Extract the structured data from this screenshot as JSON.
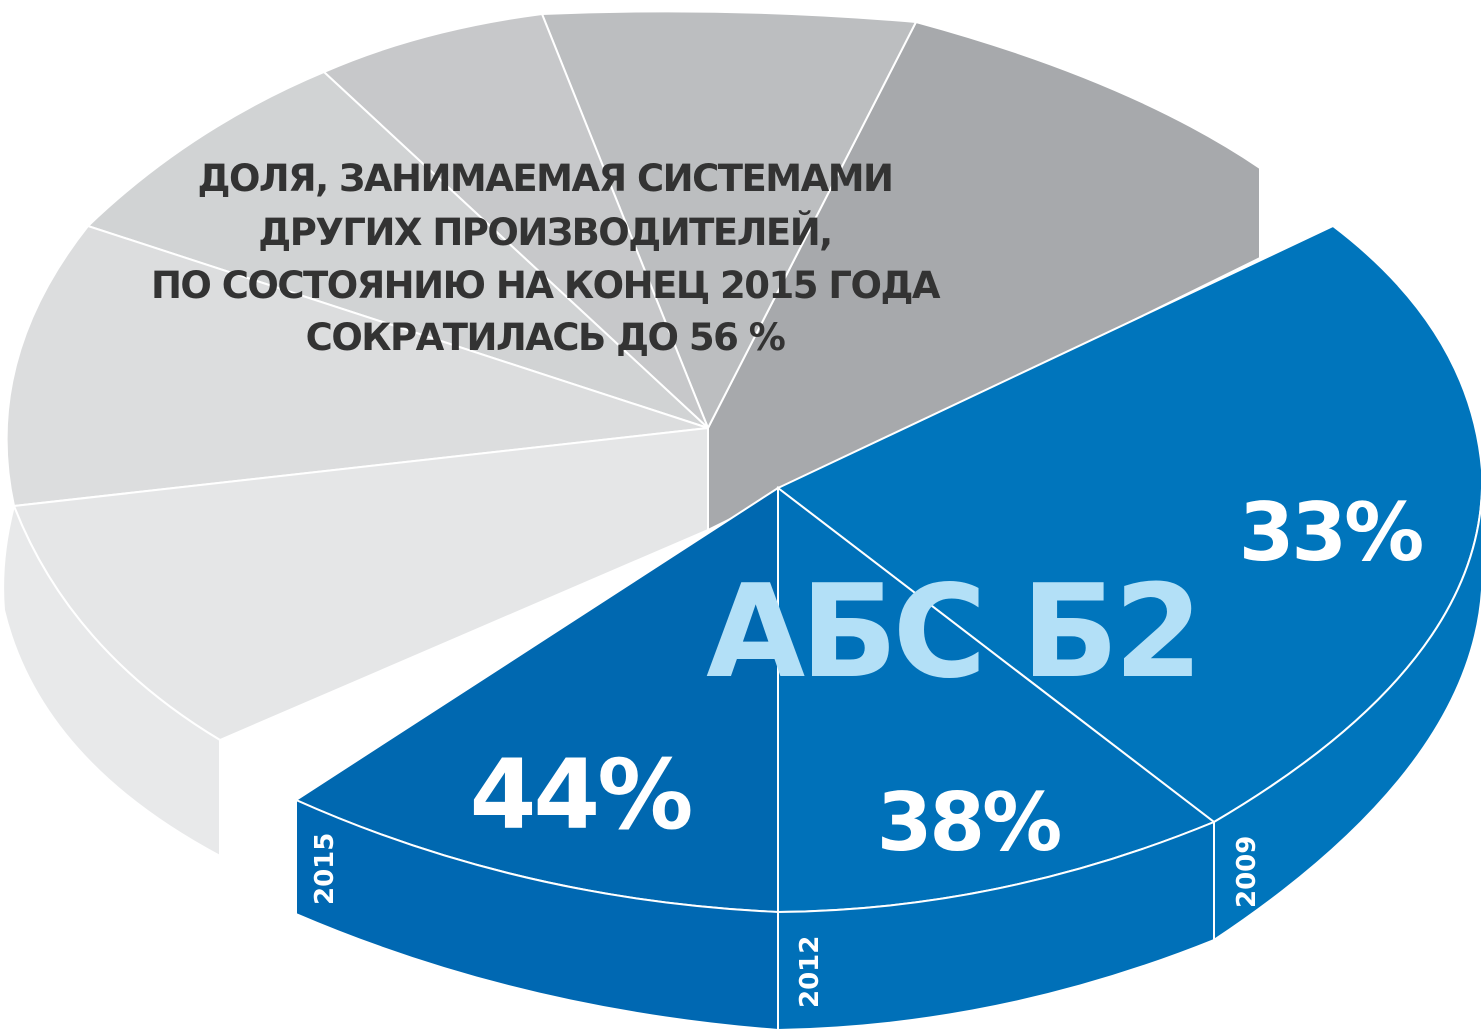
{
  "caption": {
    "line1": "ДОЛЯ, ЗАНИМАЕМАЯ СИСТЕМАМИ",
    "line2": "ДРУГИХ ПРОИЗВОДИТЕЛЕЙ,",
    "line3": "ПО СОСТОЯНИЮ НА КОНЕЦ 2015 ГОДА",
    "line4": "СОКРАТИЛАСЬ ДО 56 %"
  },
  "brand_label": "АБС Б2",
  "chart_data": {
    "type": "pie",
    "title": "",
    "series": [
      {
        "name": "АБС Б2",
        "categories": [
          "2015",
          "2012",
          "2009"
        ],
        "values": [
          44,
          38,
          33
        ],
        "value_labels": [
          "44%",
          "38%",
          "33%"
        ]
      }
    ],
    "other_share_2015": 56,
    "colors": {
      "brand_top": "#0071b9",
      "brand_top_dark": "#0068b0",
      "brand_side": "#0068b2",
      "brand_label": "#b3e0f7",
      "others_light": "#e5e6e7",
      "others_mid": "#d1d3d4",
      "others_dark": "#a7a9ac",
      "separator": "#ffffff",
      "caption": "#333333"
    },
    "legend": "none",
    "grid": false
  }
}
